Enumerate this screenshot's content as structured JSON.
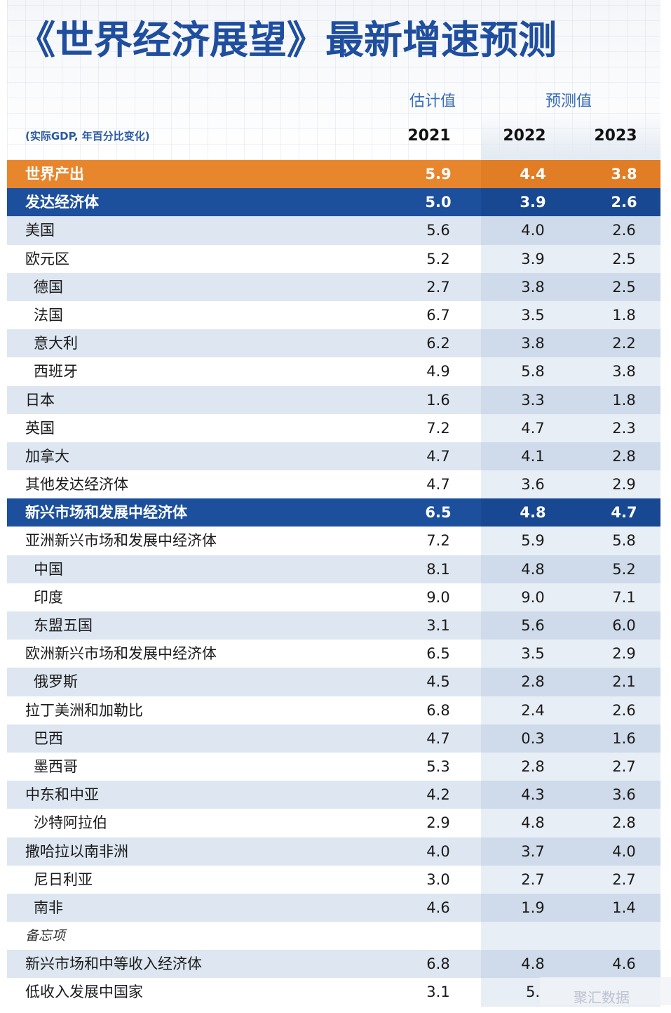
{
  "title": "《世界经济展望》最新增速预测",
  "header": {
    "estimate_label": "估计值",
    "forecast_label": "预测值",
    "note": "(实际GDP, 年百分比变化)",
    "years": [
      "2021",
      "2022",
      "2023"
    ]
  },
  "watermark": "聚汇数据",
  "chart_data": {
    "type": "table",
    "title": "《世界经济展望》最新增速预测",
    "columns": [
      "2021",
      "2022",
      "2023"
    ],
    "rows": [
      {
        "name": "世界产出",
        "style": "world",
        "level": 0,
        "values": [
          "5.9",
          "4.4",
          "3.8"
        ]
      },
      {
        "name": "发达经济体",
        "style": "group",
        "level": 0,
        "values": [
          "5.0",
          "3.9",
          "2.6"
        ]
      },
      {
        "name": "美国",
        "style": "normal",
        "level": 0,
        "values": [
          "5.6",
          "4.0",
          "2.6"
        ]
      },
      {
        "name": "欧元区",
        "style": "normal",
        "level": 0,
        "values": [
          "5.2",
          "3.9",
          "2.5"
        ]
      },
      {
        "name": "德国",
        "style": "normal",
        "level": 1,
        "values": [
          "2.7",
          "3.8",
          "2.5"
        ]
      },
      {
        "name": "法国",
        "style": "normal",
        "level": 1,
        "values": [
          "6.7",
          "3.5",
          "1.8"
        ]
      },
      {
        "name": "意大利",
        "style": "normal",
        "level": 1,
        "values": [
          "6.2",
          "3.8",
          "2.2"
        ]
      },
      {
        "name": "西班牙",
        "style": "normal",
        "level": 1,
        "values": [
          "4.9",
          "5.8",
          "3.8"
        ]
      },
      {
        "name": "日本",
        "style": "normal",
        "level": 0,
        "values": [
          "1.6",
          "3.3",
          "1.8"
        ]
      },
      {
        "name": "英国",
        "style": "normal",
        "level": 0,
        "values": [
          "7.2",
          "4.7",
          "2.3"
        ]
      },
      {
        "name": "加拿大",
        "style": "normal",
        "level": 0,
        "values": [
          "4.7",
          "4.1",
          "2.8"
        ]
      },
      {
        "name": "其他发达经济体",
        "style": "normal",
        "level": 0,
        "values": [
          "4.7",
          "3.6",
          "2.9"
        ]
      },
      {
        "name": "新兴市场和发展中经济体",
        "style": "group",
        "level": 0,
        "values": [
          "6.5",
          "4.8",
          "4.7"
        ]
      },
      {
        "name": "亚洲新兴市场和发展中经济体",
        "style": "normal",
        "level": 0,
        "values": [
          "7.2",
          "5.9",
          "5.8"
        ]
      },
      {
        "name": "中国",
        "style": "normal",
        "level": 1,
        "values": [
          "8.1",
          "4.8",
          "5.2"
        ]
      },
      {
        "name": "印度",
        "style": "normal",
        "level": 1,
        "values": [
          "9.0",
          "9.0",
          "7.1"
        ]
      },
      {
        "name": "东盟五国",
        "style": "normal",
        "level": 1,
        "values": [
          "3.1",
          "5.6",
          "6.0"
        ]
      },
      {
        "name": "欧洲新兴市场和发展中经济体",
        "style": "normal",
        "level": 0,
        "values": [
          "6.5",
          "3.5",
          "2.9"
        ]
      },
      {
        "name": "俄罗斯",
        "style": "normal",
        "level": 1,
        "values": [
          "4.5",
          "2.8",
          "2.1"
        ]
      },
      {
        "name": "拉丁美洲和加勒比",
        "style": "normal",
        "level": 0,
        "values": [
          "6.8",
          "2.4",
          "2.6"
        ]
      },
      {
        "name": "巴西",
        "style": "normal",
        "level": 1,
        "values": [
          "4.7",
          "0.3",
          "1.6"
        ]
      },
      {
        "name": "墨西哥",
        "style": "normal",
        "level": 1,
        "values": [
          "5.3",
          "2.8",
          "2.7"
        ]
      },
      {
        "name": "中东和中亚",
        "style": "normal",
        "level": 0,
        "values": [
          "4.2",
          "4.3",
          "3.6"
        ]
      },
      {
        "name": "沙特阿拉伯",
        "style": "normal",
        "level": 1,
        "values": [
          "2.9",
          "4.8",
          "2.8"
        ]
      },
      {
        "name": "撒哈拉以南非洲",
        "style": "normal",
        "level": 0,
        "values": [
          "4.0",
          "3.7",
          "4.0"
        ]
      },
      {
        "name": "尼日利亚",
        "style": "normal",
        "level": 1,
        "values": [
          "3.0",
          "2.7",
          "2.7"
        ]
      },
      {
        "name": "南非",
        "style": "normal",
        "level": 1,
        "values": [
          "4.6",
          "1.9",
          "1.4"
        ]
      },
      {
        "name": "备忘项",
        "style": "memo",
        "level": 0,
        "values": [
          "",
          "",
          ""
        ]
      },
      {
        "name": "新兴市场和中等收入经济体",
        "style": "normal",
        "level": 0,
        "values": [
          "6.8",
          "4.8",
          "4.6"
        ]
      },
      {
        "name": "低收入发展中国家",
        "style": "normal",
        "level": 0,
        "values": [
          "3.1",
          "5.",
          ""
        ]
      }
    ]
  }
}
